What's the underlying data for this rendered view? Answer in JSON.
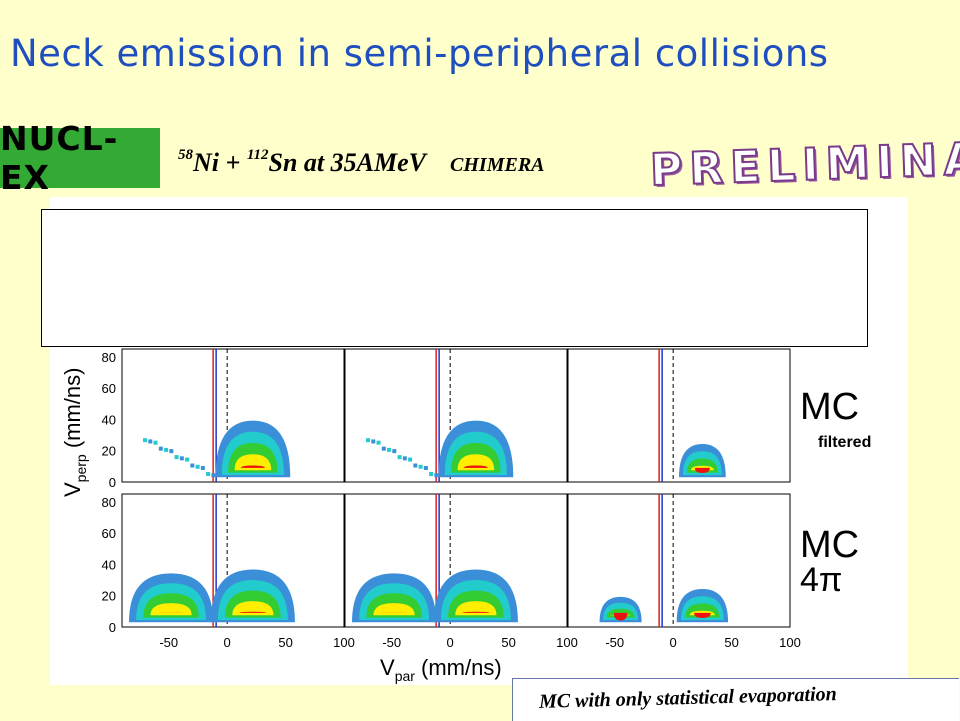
{
  "slide": {
    "title": "Neck emission in semi-peripheral collisions",
    "logo_text": "NUCL-EX",
    "reaction": {
      "proj_mass": "58",
      "proj": "Ni + ",
      "targ_mass": "112",
      "targ": "Sn at 35AMeV",
      "detector": "CHIMERA"
    },
    "stamp": "PRELIMINARY",
    "footnote": "MC with only statistical evaporation"
  },
  "figure": {
    "ylabel_main": "V",
    "ylabel_sub": "perp",
    "ylabel_unit": " (mm/ns)",
    "xlabel_main": "V",
    "xlabel_sub": "par",
    "xlabel_unit": " (mm/ns)",
    "row1_label": "MC",
    "row1_sub": "filtered",
    "row2_label": "MC",
    "row2_sub": "4π",
    "y_ticks": [
      "0",
      "20",
      "40",
      "60",
      "80"
    ],
    "x_ticks": [
      "-50",
      "0",
      "50",
      "100"
    ],
    "colors": {
      "outer": "#3a8fd8",
      "mid1": "#22cccc",
      "mid2": "#33cc33",
      "mid3": "#ffee00",
      "core": "#ee1111",
      "line_red": "#dd2222",
      "line_blue": "#2233cc"
    }
  }
}
